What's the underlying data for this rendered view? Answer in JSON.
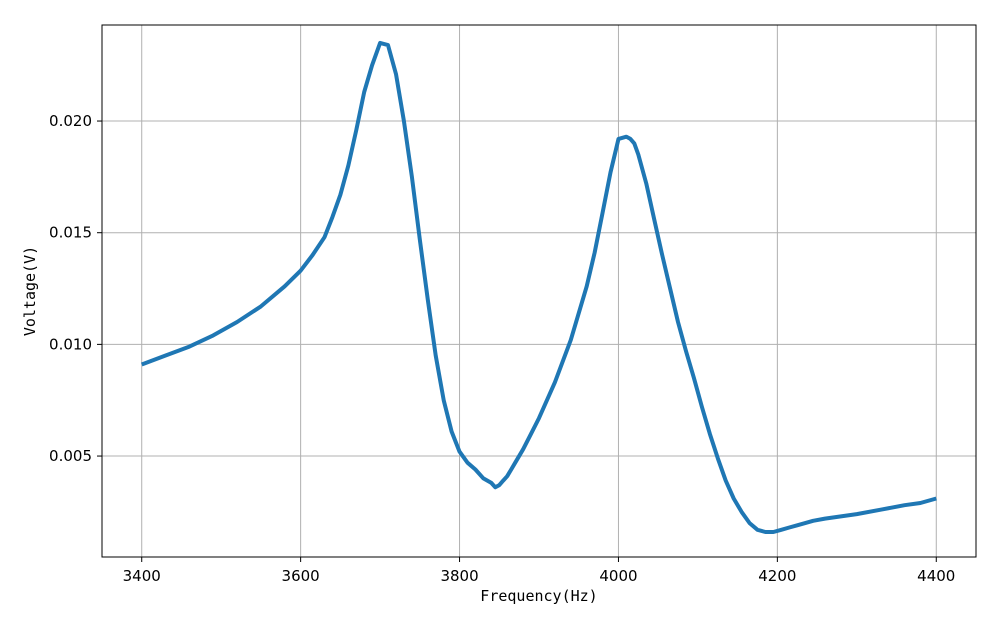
{
  "chart_data": {
    "type": "line",
    "title": "",
    "xlabel": "Frequency(Hz)",
    "ylabel": "Voltage(V)",
    "xlim": [
      3350,
      4450
    ],
    "ylim": [
      0.00048,
      0.0243
    ],
    "grid": true,
    "line_color": "#1f77b4",
    "x_ticks": [
      3400,
      3600,
      3800,
      4000,
      4200,
      4400
    ],
    "x_tick_labels": [
      "3400",
      "3600",
      "3800",
      "4000",
      "4200",
      "4400"
    ],
    "y_ticks": [
      0.005,
      0.01,
      0.015,
      0.02
    ],
    "y_tick_labels": [
      "0.005",
      "0.010",
      "0.015",
      "0.020"
    ],
    "series": [
      {
        "x": [
          3400,
          3430,
          3460,
          3490,
          3520,
          3550,
          3580,
          3600,
          3615,
          3630,
          3640,
          3650,
          3660,
          3670,
          3680,
          3690,
          3700,
          3710,
          3720,
          3730,
          3740,
          3750,
          3760,
          3770,
          3780,
          3790,
          3800,
          3810,
          3820,
          3830,
          3840,
          3845,
          3850,
          3855,
          3860,
          3865,
          3870,
          3880,
          3890,
          3900,
          3920,
          3940,
          3960,
          3970,
          3980,
          3990,
          4000,
          4010,
          4015,
          4020,
          4025,
          4035,
          4045,
          4055,
          4065,
          4075,
          4085,
          4095,
          4105,
          4115,
          4125,
          4135,
          4145,
          4155,
          4165,
          4175,
          4185,
          4195,
          4205,
          4215,
          4225,
          4235,
          4245,
          4260,
          4280,
          4300,
          4330,
          4360,
          4380,
          4400
        ],
        "y": [
          0.0091,
          0.0095,
          0.0099,
          0.0104,
          0.011,
          0.0117,
          0.0126,
          0.0133,
          0.014,
          0.0148,
          0.0157,
          0.0167,
          0.018,
          0.0196,
          0.0213,
          0.0225,
          0.0235,
          0.0234,
          0.0221,
          0.02,
          0.0175,
          0.0147,
          0.012,
          0.0095,
          0.0075,
          0.0061,
          0.0052,
          0.0047,
          0.0044,
          0.004,
          0.0038,
          0.0036,
          0.0037,
          0.0039,
          0.0041,
          0.0044,
          0.0047,
          0.0053,
          0.006,
          0.0067,
          0.0083,
          0.0102,
          0.0126,
          0.0141,
          0.0159,
          0.0177,
          0.0192,
          0.0193,
          0.0192,
          0.019,
          0.0185,
          0.0172,
          0.0156,
          0.014,
          0.0125,
          0.011,
          0.0097,
          0.0085,
          0.0072,
          0.006,
          0.0049,
          0.0039,
          0.0031,
          0.0025,
          0.002,
          0.0017,
          0.0016,
          0.0016,
          0.0017,
          0.0018,
          0.0019,
          0.002,
          0.0021,
          0.0022,
          0.0023,
          0.0024,
          0.0026,
          0.0028,
          0.0029,
          0.0031
        ]
      }
    ]
  }
}
